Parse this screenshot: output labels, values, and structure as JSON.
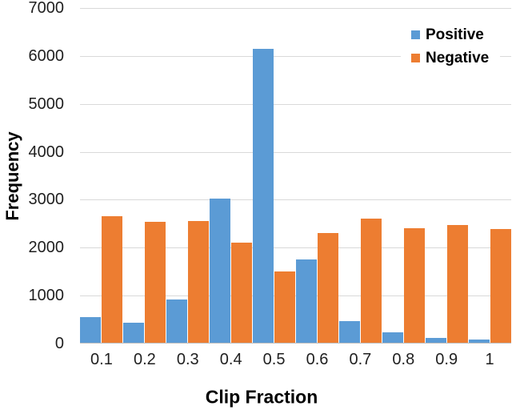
{
  "chart_data": {
    "type": "bar",
    "title": "",
    "xlabel": "Clip Fraction",
    "ylabel": "Frequency",
    "categories": [
      "0.1",
      "0.2",
      "0.3",
      "0.4",
      "0.5",
      "0.6",
      "0.7",
      "0.8",
      "0.9",
      "1"
    ],
    "series": [
      {
        "name": "Positive",
        "color": "#5B9BD5",
        "values": [
          550,
          440,
          920,
          3020,
          6150,
          1750,
          470,
          240,
          120,
          80
        ]
      },
      {
        "name": "Negative",
        "color": "#ED7D31",
        "values": [
          2660,
          2540,
          2560,
          2100,
          1500,
          2300,
          2600,
          2410,
          2470,
          2390
        ]
      }
    ],
    "ylim": [
      0,
      7000
    ],
    "y_ticks": [
      0,
      1000,
      2000,
      3000,
      4000,
      5000,
      6000,
      7000
    ],
    "grid": "horizontal",
    "gridline_color": "#D9D9D9",
    "axis_line_color": "#BFBFBF",
    "legend_position": "top-right"
  },
  "axes": {
    "x_title": "Clip Fraction",
    "y_title": "Frequency"
  },
  "legend": {
    "items": [
      {
        "label": "Positive",
        "color": "#5B9BD5"
      },
      {
        "label": "Negative",
        "color": "#ED7D31"
      }
    ]
  }
}
